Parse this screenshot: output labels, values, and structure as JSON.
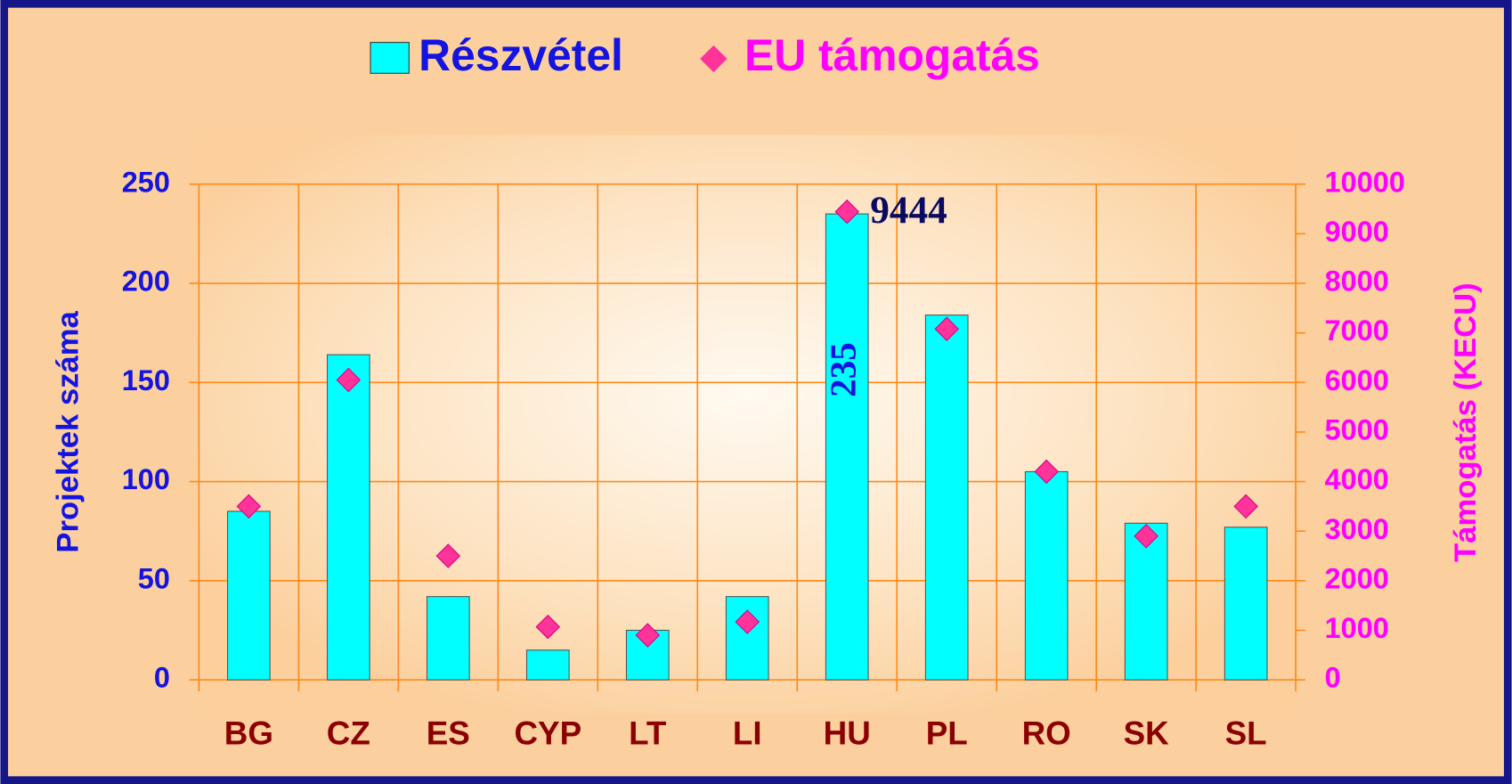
{
  "chart_data": {
    "type": "bar",
    "categories": [
      "BG",
      "CZ",
      "ES",
      "CYP",
      "LT",
      "LI",
      "HU",
      "PL",
      "RO",
      "SK",
      "SL"
    ],
    "series": [
      {
        "name": "Részvétel",
        "type": "bar",
        "color": "#00ffff",
        "axis": "y",
        "values": [
          85,
          164,
          42,
          15,
          25,
          42,
          235,
          184,
          105,
          79,
          77
        ],
        "value_labels": [
          null,
          null,
          null,
          null,
          null,
          null,
          "235",
          null,
          null,
          null,
          null
        ]
      },
      {
        "name": "EU támogatás",
        "type": "scatter",
        "color": "#ff3399",
        "axis": "y2",
        "values": [
          3500,
          6050,
          2500,
          1070,
          900,
          1170,
          9444,
          7080,
          4200,
          2900,
          3500
        ],
        "value_labels": [
          null,
          null,
          null,
          null,
          null,
          null,
          "9444",
          null,
          null,
          null,
          null
        ]
      }
    ],
    "ylabel": "Projektek száma",
    "y2label": "Támogatás (KECU)",
    "ylim": [
      0,
      250
    ],
    "yticks": [
      0,
      50,
      100,
      150,
      200,
      250
    ],
    "y2lim": [
      0,
      10000
    ],
    "y2ticks": [
      0,
      1000,
      2000,
      3000,
      4000,
      5000,
      6000,
      7000,
      8000,
      9000,
      10000
    ],
    "grid": true,
    "legend": "top"
  }
}
